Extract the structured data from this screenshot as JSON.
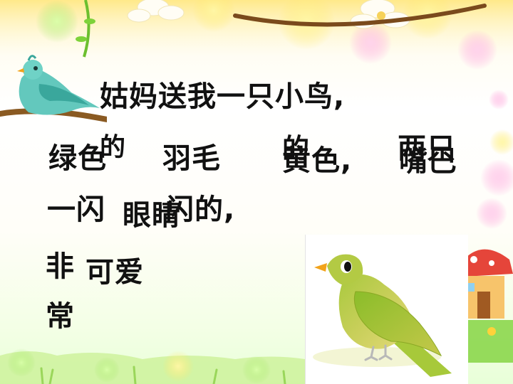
{
  "poem": {
    "line1": "姑妈送我一只小鸟,",
    "line2_a": "绿色",
    "line2_b": "的",
    "line2_c": "羽毛",
    "line2_d": "的",
    "line2_e": "黄色,",
    "line2_f": "两只",
    "line2_g": "嘴巴",
    "line3_a": "一闪",
    "line3_b": "眼睛",
    "line3_c": "闪的,",
    "line4_a": "非",
    "line4_b": "可爱",
    "line5": "常"
  },
  "colors": {
    "text": "#111111",
    "bird_body": "#a7c93a",
    "bird_belly": "#e0d66a",
    "bird_beak": "#f2a31b",
    "perched_bird": "#5cc3b8"
  },
  "icons": {
    "illustration": "green-bird-illustration",
    "decoration": "perched-teal-bird-icon"
  }
}
